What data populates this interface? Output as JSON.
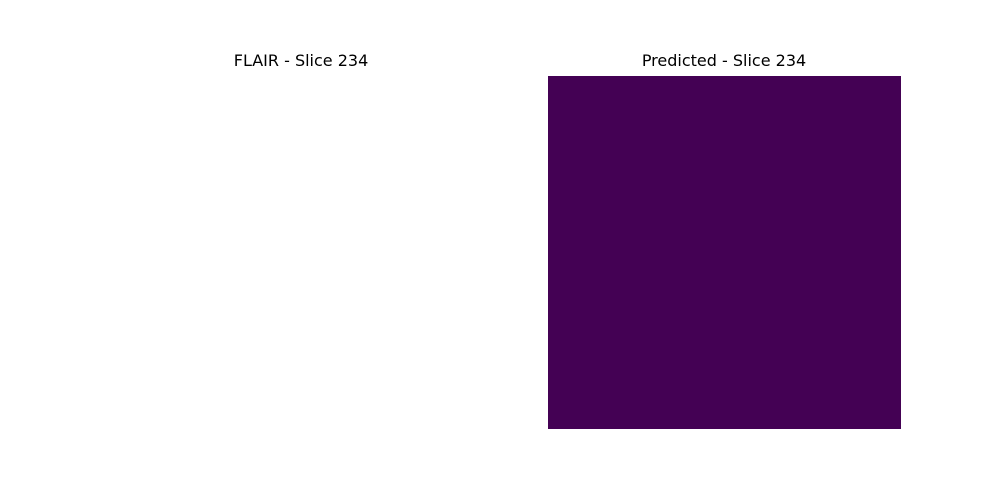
{
  "panels": [
    {
      "title": "FLAIR - Slice 234",
      "fill_color": "#ffffff"
    },
    {
      "title": "Predicted - Slice 234",
      "fill_color": "#440154"
    }
  ]
}
